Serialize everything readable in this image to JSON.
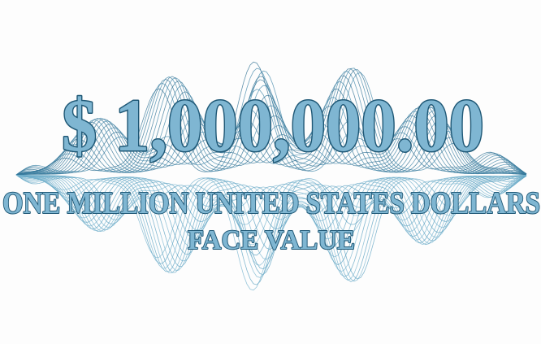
{
  "certificate": {
    "amount": "$ 1,000,000.00",
    "amount_words": "ONE MILLION UNITED STATES DOLLARS",
    "caption": "FACE VALUE"
  }
}
